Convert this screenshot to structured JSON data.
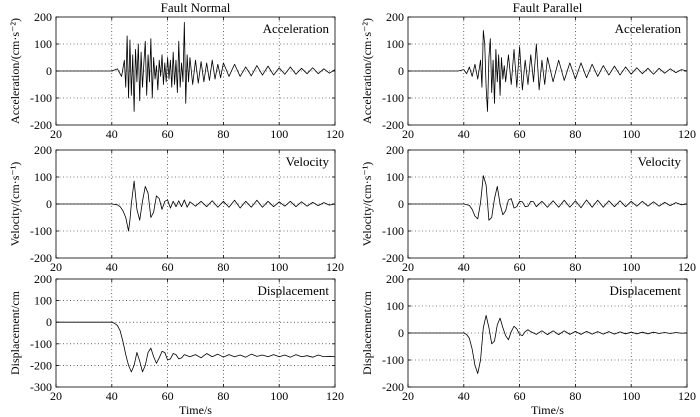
{
  "chart_data": [
    {
      "type": "line",
      "title": "Fault Normal",
      "panel_label": "Acceleration",
      "ylabel": "Acceleration/(cm·s⁻²)",
      "xlabel": "",
      "xlim": [
        20,
        120
      ],
      "ylim": [
        -200,
        200
      ],
      "xticks": [
        20,
        40,
        60,
        80,
        100,
        120
      ],
      "yticks": [
        -200,
        -100,
        0,
        100,
        200
      ],
      "grid": true,
      "series": [
        {
          "x": [
            20,
            40,
            42,
            43.5,
            44.5,
            45,
            45.5,
            46,
            46.5,
            47,
            47.5,
            48,
            48.5,
            49,
            49.5,
            50,
            50.5,
            51,
            51.5,
            52,
            52.5,
            53,
            53.5,
            54,
            54.5,
            55,
            55.5,
            56,
            56.5,
            57,
            57.5,
            58,
            58.5,
            59,
            59.5,
            60,
            60.5,
            61,
            61.5,
            62,
            62.5,
            63,
            63.5,
            64,
            64.5,
            65,
            65.5,
            66,
            66.5,
            67,
            67.5,
            68,
            69,
            70,
            71,
            72,
            73,
            74,
            75,
            76,
            77,
            78,
            79,
            80,
            82,
            84,
            86,
            88,
            90,
            92,
            94,
            96,
            98,
            100,
            102,
            104,
            106,
            108,
            110,
            112,
            114,
            116,
            118,
            120
          ],
          "y": [
            0,
            0,
            8,
            -20,
            40,
            -60,
            130,
            -100,
            115,
            -90,
            60,
            -150,
            80,
            -40,
            100,
            -110,
            70,
            -60,
            30,
            110,
            -90,
            60,
            -40,
            120,
            -100,
            50,
            -30,
            20,
            -70,
            40,
            -20,
            60,
            -50,
            30,
            -40,
            50,
            -30,
            40,
            -60,
            70,
            -50,
            40,
            -80,
            110,
            -60,
            30,
            -40,
            180,
            -120,
            60,
            -40,
            50,
            -50,
            40,
            -45,
            35,
            -40,
            30,
            -35,
            40,
            -30,
            25,
            -25,
            30,
            -20,
            25,
            -20,
            15,
            -18,
            20,
            -15,
            18,
            -15,
            12,
            -12,
            15,
            -12,
            10,
            -10,
            12,
            -10,
            8,
            -8,
            5
          ]
        }
      ]
    },
    {
      "type": "line",
      "title": "Fault Parallel",
      "panel_label": "Acceleration",
      "ylabel": "Acceleration/(cm·s⁻²)",
      "xlabel": "",
      "xlim": [
        20,
        120
      ],
      "ylim": [
        -200,
        200
      ],
      "xticks": [
        20,
        40,
        60,
        80,
        100,
        120
      ],
      "yticks": [
        -200,
        -100,
        0,
        100,
        200
      ],
      "grid": true,
      "series": [
        {
          "x": [
            20,
            38,
            40,
            41,
            42,
            43,
            44,
            45,
            46,
            46.5,
            47,
            47.5,
            48,
            48.5,
            49,
            49.5,
            50,
            50.5,
            51,
            51.5,
            52,
            52.5,
            53,
            53.5,
            54,
            54.5,
            55,
            56,
            57,
            58,
            59,
            60,
            61,
            62,
            63,
            64,
            65,
            66,
            67,
            68,
            69,
            70,
            72,
            74,
            76,
            78,
            80,
            82,
            84,
            86,
            88,
            90,
            92,
            94,
            96,
            98,
            100,
            102,
            104,
            106,
            108,
            110,
            112,
            114,
            116,
            118,
            120
          ],
          "y": [
            0,
            0,
            5,
            -10,
            15,
            -20,
            25,
            -30,
            40,
            -60,
            150,
            100,
            -60,
            -150,
            50,
            120,
            -80,
            40,
            -120,
            80,
            -40,
            60,
            -90,
            50,
            -30,
            20,
            -40,
            60,
            -50,
            80,
            -60,
            90,
            -70,
            40,
            -50,
            60,
            -40,
            100,
            -70,
            40,
            -50,
            50,
            -40,
            40,
            -35,
            30,
            -30,
            30,
            -25,
            25,
            -20,
            20,
            -15,
            18,
            -15,
            15,
            -12,
            12,
            -10,
            10,
            -12,
            10,
            -8,
            8,
            -6,
            5,
            0
          ]
        }
      ]
    },
    {
      "type": "line",
      "title": "",
      "panel_label": "Velocity",
      "ylabel": "Velocity/(cm·s⁻¹)",
      "xlabel": "",
      "xlim": [
        20,
        120
      ],
      "ylim": [
        -200,
        200
      ],
      "xticks": [
        20,
        40,
        60,
        80,
        100,
        120
      ],
      "yticks": [
        -200,
        -100,
        0,
        100,
        200
      ],
      "grid": true,
      "series": [
        {
          "x": [
            20,
            40,
            42,
            43,
            44,
            45,
            46,
            46.5,
            47,
            48,
            49,
            50,
            51,
            52,
            53,
            54,
            55,
            56,
            57,
            58,
            59,
            60,
            61,
            62,
            63,
            64,
            65,
            66,
            67,
            68,
            70,
            72,
            74,
            76,
            78,
            80,
            82,
            84,
            86,
            88,
            90,
            92,
            94,
            96,
            98,
            100,
            102,
            104,
            106,
            108,
            110,
            112,
            114,
            116,
            118,
            120
          ],
          "y": [
            0,
            0,
            -3,
            -10,
            -25,
            -50,
            -100,
            -60,
            0,
            85,
            -20,
            -60,
            10,
            65,
            40,
            -50,
            -30,
            30,
            20,
            -20,
            10,
            15,
            -15,
            10,
            -10,
            12,
            -10,
            15,
            -12,
            8,
            -8,
            10,
            -10,
            12,
            -12,
            10,
            -12,
            14,
            -15,
            10,
            -12,
            14,
            -12,
            10,
            -10,
            8,
            -8,
            10,
            -10,
            8,
            -8,
            6,
            -6,
            5,
            -4,
            0
          ]
        }
      ]
    },
    {
      "type": "line",
      "title": "",
      "panel_label": "Velocity",
      "ylabel": "Velocity/(cm·s⁻¹)",
      "xlabel": "",
      "xlim": [
        20,
        120
      ],
      "ylim": [
        -200,
        200
      ],
      "xticks": [
        20,
        40,
        60,
        80,
        100,
        120
      ],
      "yticks": [
        -200,
        -100,
        0,
        100,
        200
      ],
      "grid": true,
      "series": [
        {
          "x": [
            20,
            40,
            42,
            43,
            44,
            45,
            46,
            47,
            48,
            49,
            50,
            51,
            52,
            53,
            54,
            55,
            56,
            57,
            58,
            59,
            60,
            61,
            62,
            63,
            64,
            65,
            66,
            68,
            70,
            72,
            74,
            76,
            78,
            80,
            82,
            84,
            86,
            88,
            90,
            92,
            94,
            96,
            98,
            100,
            102,
            104,
            106,
            108,
            110,
            112,
            114,
            116,
            118,
            120
          ],
          "y": [
            0,
            0,
            -5,
            -20,
            -45,
            -55,
            5,
            105,
            70,
            -60,
            -50,
            20,
            65,
            0,
            -40,
            -25,
            15,
            20,
            -15,
            -10,
            10,
            8,
            -10,
            -8,
            10,
            8,
            -10,
            10,
            -12,
            12,
            -12,
            14,
            -12,
            12,
            -14,
            15,
            -12,
            14,
            -12,
            12,
            -10,
            12,
            -10,
            10,
            -8,
            10,
            -8,
            8,
            -8,
            6,
            -6,
            5,
            -3,
            0
          ]
        }
      ]
    },
    {
      "type": "line",
      "title": "",
      "panel_label": "Displacement",
      "ylabel": "Displacement/cm",
      "xlabel": "Time/s",
      "xlim": [
        20,
        120
      ],
      "ylim": [
        -300,
        200
      ],
      "xticks": [
        20,
        40,
        60,
        80,
        100,
        120
      ],
      "yticks": [
        -300,
        -200,
        -100,
        0,
        100,
        200
      ],
      "grid": true,
      "series": [
        {
          "x": [
            20,
            40,
            41,
            42,
            43,
            44,
            45,
            46,
            47,
            48,
            49,
            50,
            51,
            52,
            53,
            54,
            55,
            56,
            57,
            58,
            59,
            60,
            61,
            62,
            63,
            64,
            65,
            66,
            68,
            70,
            72,
            74,
            76,
            78,
            80,
            82,
            84,
            86,
            88,
            90,
            92,
            94,
            96,
            98,
            100,
            102,
            104,
            106,
            108,
            110,
            112,
            114,
            116,
            118,
            120
          ],
          "y": [
            0,
            0,
            -5,
            -15,
            -40,
            -90,
            -150,
            -200,
            -230,
            -200,
            -140,
            -180,
            -230,
            -200,
            -140,
            -120,
            -160,
            -190,
            -165,
            -135,
            -140,
            -175,
            -170,
            -145,
            -150,
            -170,
            -165,
            -150,
            -160,
            -150,
            -165,
            -145,
            -160,
            -148,
            -162,
            -150,
            -160,
            -152,
            -162,
            -148,
            -158,
            -152,
            -160,
            -150,
            -160,
            -152,
            -162,
            -150,
            -160,
            -155,
            -162,
            -152,
            -160,
            -158,
            -160
          ]
        }
      ]
    },
    {
      "type": "line",
      "title": "",
      "panel_label": "Displacement",
      "ylabel": "Displacement/cm",
      "xlabel": "Time/s",
      "xlim": [
        20,
        120
      ],
      "ylim": [
        -200,
        200
      ],
      "xticks": [
        20,
        40,
        60,
        80,
        100,
        120
      ],
      "yticks": [
        -200,
        -100,
        0,
        100,
        200
      ],
      "grid": true,
      "series": [
        {
          "x": [
            20,
            40,
            41,
            42,
            43,
            44,
            45,
            46,
            47,
            48,
            49,
            50,
            51,
            52,
            53,
            54,
            55,
            56,
            57,
            58,
            59,
            60,
            61,
            62,
            63,
            64,
            66,
            68,
            70,
            72,
            74,
            76,
            78,
            80,
            82,
            84,
            86,
            88,
            90,
            92,
            94,
            96,
            98,
            100,
            102,
            104,
            106,
            108,
            110,
            112,
            114,
            116,
            118,
            120
          ],
          "y": [
            0,
            0,
            -5,
            -20,
            -60,
            -120,
            -150,
            -100,
            20,
            65,
            20,
            -40,
            -30,
            30,
            55,
            20,
            -10,
            -25,
            5,
            25,
            15,
            -5,
            -10,
            5,
            12,
            5,
            -5,
            8,
            -6,
            8,
            -6,
            8,
            -5,
            6,
            -5,
            6,
            -4,
            5,
            -4,
            5,
            -4,
            4,
            -3,
            3,
            -3,
            3,
            -3,
            3,
            -2,
            2,
            -2,
            2,
            -1,
            0
          ]
        }
      ]
    }
  ]
}
